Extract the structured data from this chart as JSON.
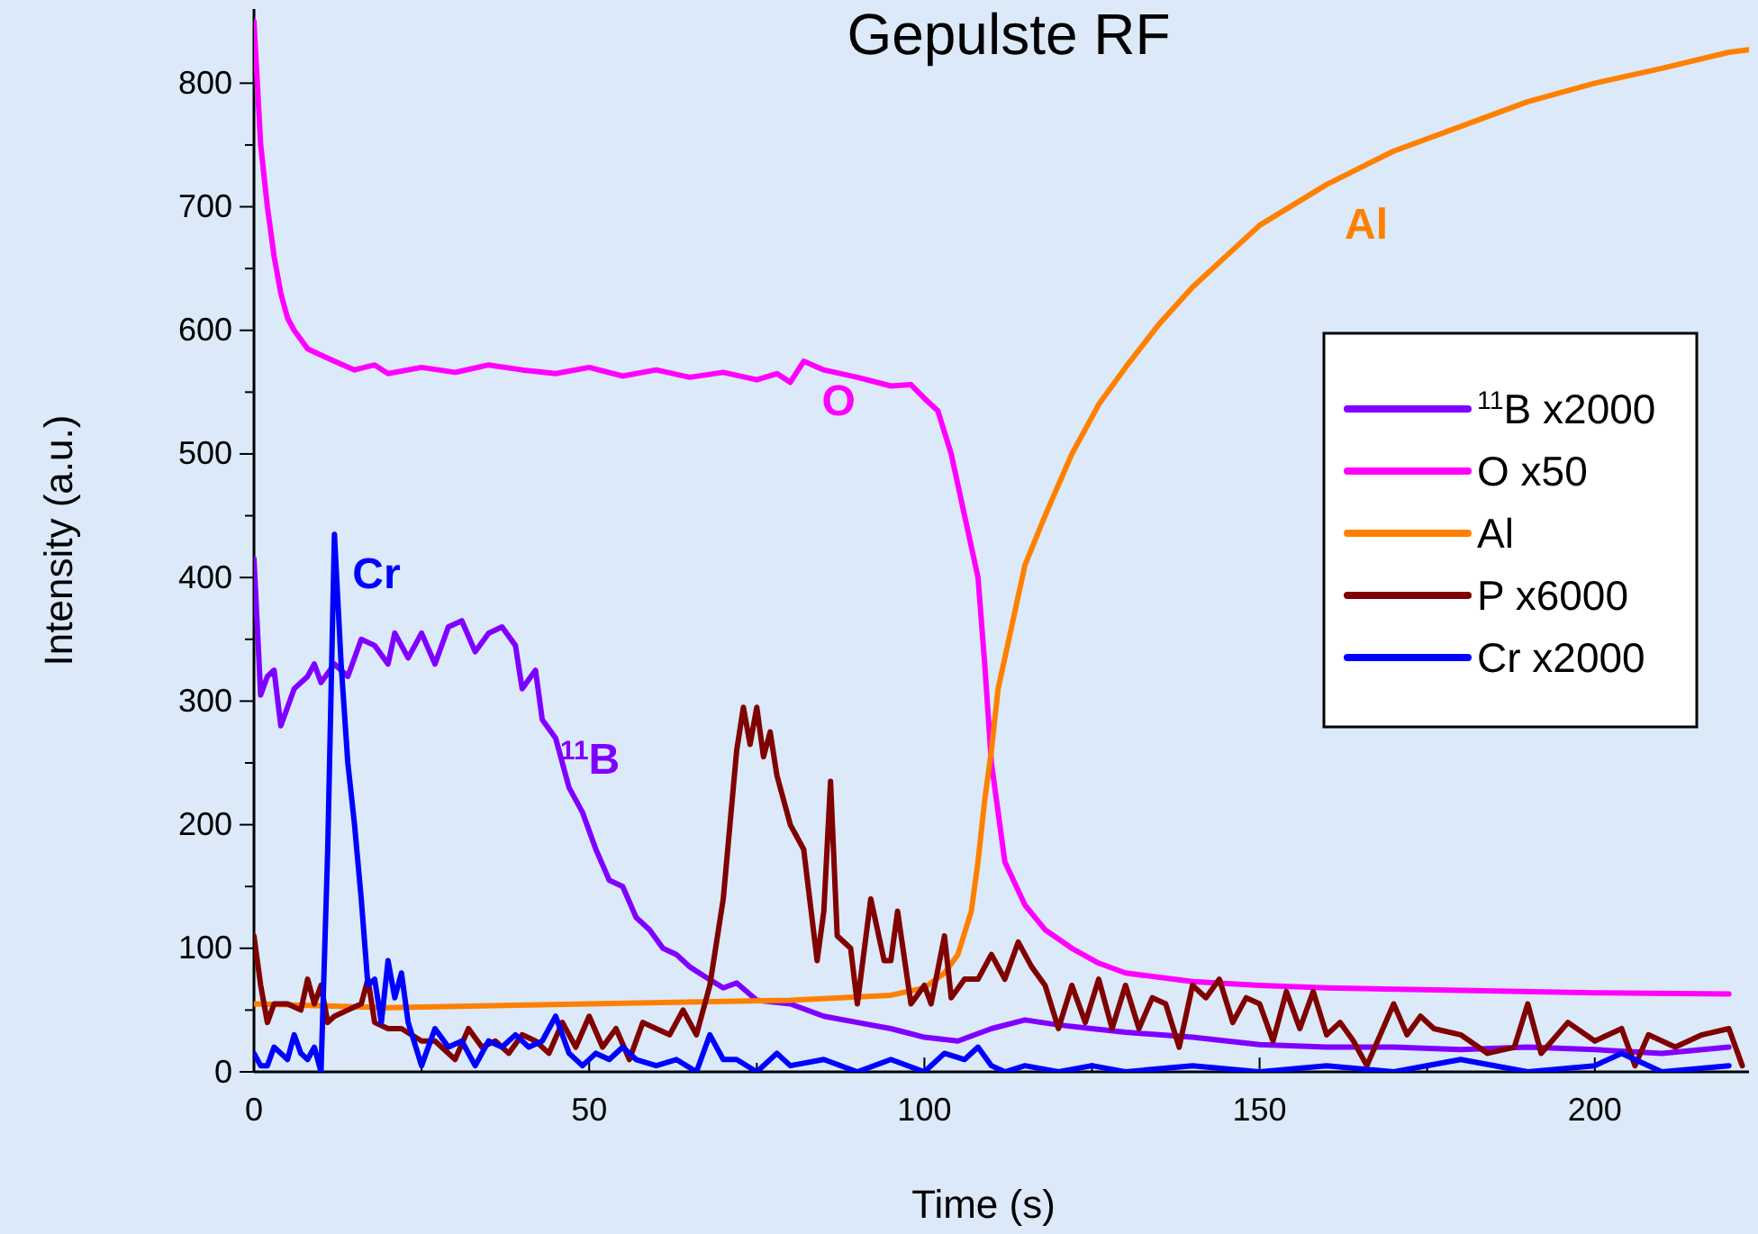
{
  "chart_data": {
    "type": "line",
    "title": "Gepulste RF",
    "xlabel": "Time (s)",
    "ylabel": "Intensity (a.u.)",
    "xlim": [
      0,
      223
    ],
    "ylim": [
      0,
      860
    ],
    "xticks": [
      0,
      {
        "value": 25,
        "label": null
      },
      50,
      {
        "value": 75,
        "label": null
      },
      100,
      {
        "value": 125,
        "label": null
      },
      150,
      {
        "value": 175,
        "label": null
      },
      200
    ],
    "yticks": [
      0,
      {
        "value": 50,
        "label": null
      },
      100,
      {
        "value": 150,
        "label": null
      },
      200,
      {
        "value": 250,
        "label": null
      },
      300,
      {
        "value": 350,
        "label": null
      },
      400,
      {
        "value": 450,
        "label": null
      },
      500,
      {
        "value": 550,
        "label": null
      },
      600,
      {
        "value": 650,
        "label": null
      },
      700,
      {
        "value": 750,
        "label": null
      },
      800
    ],
    "grid": false,
    "legend": "right",
    "line_style": "solid",
    "series": [
      {
        "name": "$^{11}$B x2000",
        "color": "#8000ff",
        "x": [
          0,
          1,
          2,
          3,
          4,
          6,
          8,
          9,
          10,
          12,
          14,
          16,
          18,
          20,
          21,
          23,
          25,
          27,
          29,
          31,
          33,
          35,
          37,
          39,
          40,
          42,
          43,
          45,
          47,
          49,
          51,
          53,
          55,
          57,
          59,
          61,
          63,
          65,
          67,
          70,
          72,
          75,
          80,
          85,
          90,
          95,
          100,
          105,
          110,
          115,
          120,
          125,
          130,
          140,
          150,
          160,
          170,
          180,
          190,
          200,
          210,
          220
        ],
        "values": [
          415,
          305,
          320,
          325,
          280,
          310,
          320,
          330,
          315,
          330,
          320,
          350,
          345,
          330,
          355,
          335,
          355,
          330,
          360,
          365,
          340,
          355,
          360,
          345,
          310,
          325,
          285,
          270,
          230,
          210,
          180,
          155,
          150,
          125,
          115,
          100,
          95,
          85,
          78,
          68,
          72,
          58,
          55,
          45,
          40,
          35,
          28,
          25,
          35,
          42,
          38,
          35,
          32,
          28,
          22,
          20,
          20,
          18,
          20,
          18,
          15,
          20
        ]
      },
      {
        "name": "O x50",
        "color": "#ff00ff",
        "x": [
          0,
          1,
          2,
          3,
          4,
          5,
          6,
          8,
          10,
          12,
          15,
          18,
          20,
          25,
          30,
          35,
          40,
          45,
          50,
          55,
          60,
          65,
          70,
          75,
          78,
          80,
          82,
          85,
          90,
          95,
          98,
          100,
          102,
          104,
          106,
          108,
          109,
          110,
          112,
          115,
          118,
          122,
          126,
          130,
          140,
          150,
          160,
          180,
          200,
          220
        ],
        "values": [
          850,
          750,
          700,
          660,
          630,
          610,
          600,
          585,
          580,
          575,
          568,
          572,
          565,
          570,
          566,
          572,
          568,
          565,
          570,
          563,
          568,
          562,
          566,
          560,
          565,
          558,
          575,
          568,
          562,
          555,
          556,
          545,
          535,
          500,
          450,
          400,
          330,
          250,
          170,
          135,
          115,
          100,
          88,
          80,
          73,
          70,
          68,
          66,
          64,
          63
        ]
      },
      {
        "name": "Al",
        "color": "#ff8000",
        "x": [
          0,
          20,
          50,
          80,
          95,
          100,
          103,
          105,
          107,
          108,
          109,
          110,
          111,
          113,
          115,
          118,
          122,
          126,
          130,
          135,
          140,
          145,
          150,
          160,
          170,
          180,
          190,
          200,
          210,
          220,
          223
        ],
        "values": [
          55,
          52,
          55,
          58,
          62,
          68,
          80,
          95,
          130,
          170,
          220,
          260,
          310,
          360,
          410,
          450,
          500,
          540,
          570,
          605,
          635,
          660,
          685,
          718,
          745,
          765,
          785,
          800,
          812,
          825,
          827
        ]
      },
      {
        "name": "P x6000",
        "color": "#800000",
        "x": [
          0,
          1,
          2,
          3,
          5,
          7,
          8,
          9,
          10,
          11,
          12,
          14,
          16,
          17,
          18,
          20,
          22,
          25,
          27,
          30,
          32,
          34,
          36,
          38,
          40,
          42,
          44,
          46,
          48,
          50,
          52,
          54,
          56,
          58,
          60,
          62,
          64,
          66,
          68,
          70,
          71,
          72,
          73,
          74,
          75,
          76,
          77,
          78,
          80,
          82,
          84,
          85,
          86,
          87,
          89,
          90,
          92,
          94,
          95,
          96,
          98,
          100,
          101,
          103,
          104,
          106,
          108,
          110,
          112,
          114,
          116,
          118,
          120,
          122,
          124,
          126,
          128,
          130,
          132,
          134,
          136,
          138,
          140,
          142,
          144,
          146,
          148,
          150,
          152,
          154,
          156,
          158,
          160,
          162,
          164,
          166,
          168,
          170,
          172,
          174,
          176,
          180,
          184,
          188,
          190,
          192,
          196,
          200,
          204,
          206,
          208,
          212,
          216,
          220,
          222
        ],
        "values": [
          110,
          70,
          40,
          55,
          55,
          50,
          75,
          55,
          70,
          40,
          45,
          50,
          55,
          75,
          40,
          35,
          35,
          25,
          25,
          10,
          35,
          20,
          25,
          15,
          30,
          25,
          15,
          40,
          20,
          45,
          20,
          35,
          10,
          40,
          35,
          30,
          50,
          30,
          70,
          140,
          200,
          260,
          295,
          265,
          295,
          255,
          275,
          240,
          200,
          180,
          90,
          130,
          235,
          110,
          100,
          55,
          140,
          90,
          90,
          130,
          55,
          70,
          55,
          110,
          60,
          75,
          75,
          95,
          75,
          105,
          85,
          70,
          35,
          70,
          40,
          75,
          35,
          70,
          35,
          60,
          55,
          20,
          70,
          60,
          75,
          40,
          60,
          55,
          25,
          65,
          35,
          65,
          30,
          40,
          25,
          5,
          30,
          55,
          30,
          45,
          35,
          30,
          15,
          20,
          55,
          15,
          40,
          25,
          35,
          5,
          30,
          20,
          30,
          35,
          5
        ]
      },
      {
        "name": "Cr x2000",
        "color": "#0000ff",
        "x": [
          0,
          1,
          2,
          3,
          4,
          5,
          6,
          7,
          8,
          9,
          10,
          11,
          12,
          13,
          14,
          15,
          16,
          17,
          18,
          19,
          20,
          21,
          22,
          23,
          25,
          27,
          29,
          31,
          33,
          35,
          37,
          39,
          41,
          43,
          45,
          47,
          49,
          51,
          53,
          55,
          57,
          60,
          63,
          66,
          68,
          70,
          72,
          75,
          78,
          80,
          85,
          90,
          95,
          100,
          103,
          106,
          108,
          110,
          112,
          115,
          120,
          125,
          130,
          140,
          150,
          160,
          170,
          180,
          190,
          200,
          204,
          210,
          220
        ],
        "values": [
          15,
          5,
          5,
          20,
          15,
          10,
          30,
          15,
          10,
          20,
          0,
          180,
          435,
          330,
          250,
          200,
          140,
          70,
          75,
          40,
          90,
          60,
          80,
          40,
          5,
          35,
          20,
          25,
          5,
          25,
          20,
          30,
          20,
          25,
          45,
          15,
          5,
          15,
          10,
          20,
          10,
          5,
          10,
          0,
          30,
          10,
          10,
          0,
          15,
          5,
          10,
          0,
          10,
          0,
          15,
          10,
          20,
          5,
          0,
          5,
          0,
          5,
          0,
          5,
          0,
          5,
          0,
          10,
          0,
          5,
          15,
          0,
          5
        ]
      }
    ],
    "annotations": [
      {
        "text": "$^{11}$B",
        "x": 43,
        "y": 285
      },
      {
        "text": "O",
        "x": 82,
        "y": 575
      },
      {
        "text": "Al",
        "x": 160,
        "y": 718
      },
      {
        "text": "Cr",
        "x": 12,
        "y": 435
      }
    ]
  }
}
